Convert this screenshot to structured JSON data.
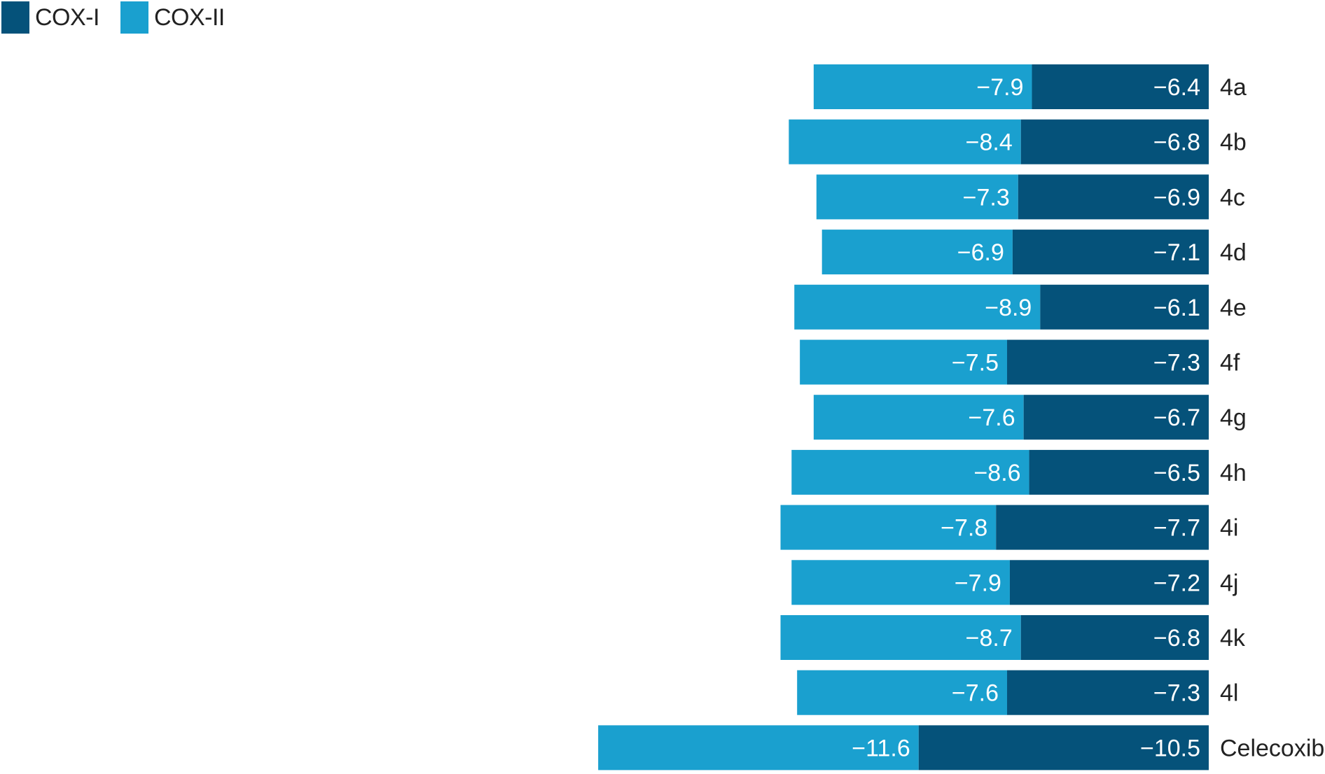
{
  "legend": {
    "items": [
      {
        "name": "COX-I",
        "color": "#05527a"
      },
      {
        "name": "COX-II",
        "color": "#1aa0cf"
      }
    ]
  },
  "chart_data": {
    "type": "bar",
    "orientation": "horizontal",
    "stacked": true,
    "categories": [
      "4a",
      "4b",
      "4c",
      "4d",
      "4e",
      "4f",
      "4g",
      "4h",
      "4i",
      "4j",
      "4k",
      "4l",
      "Celecoxib"
    ],
    "series": [
      {
        "name": "COX-I",
        "color": "#05527a",
        "values": [
          -6.4,
          -6.8,
          -6.9,
          -7.1,
          -6.1,
          -7.3,
          -6.7,
          -6.5,
          -7.7,
          -7.2,
          -6.8,
          -7.3,
          -10.5
        ]
      },
      {
        "name": "COX-II",
        "color": "#1aa0cf",
        "values": [
          -7.9,
          -8.4,
          -7.3,
          -6.9,
          -8.9,
          -7.5,
          -7.6,
          -8.6,
          -7.8,
          -7.9,
          -8.7,
          -7.6,
          -11.6
        ]
      }
    ],
    "title": "",
    "xlabel": "",
    "ylabel": "",
    "grid": false,
    "legend_position": "top-left",
    "data_label_color": "#ffffff",
    "category_label_color": "#222222"
  }
}
